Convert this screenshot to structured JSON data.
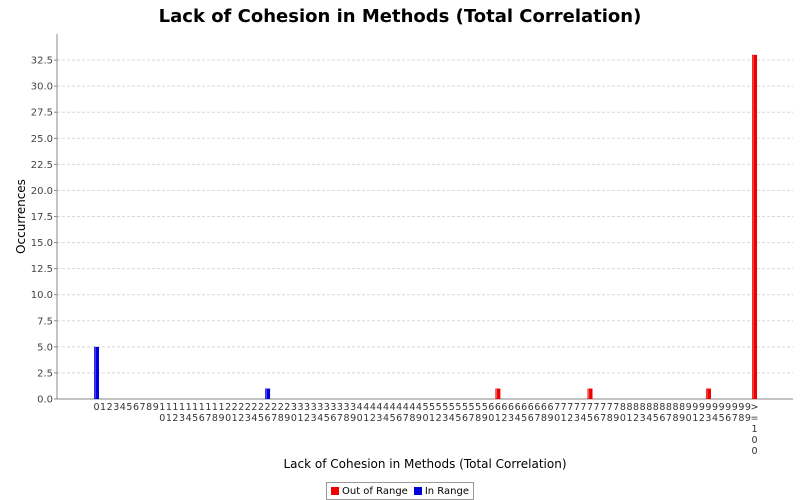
{
  "chart_data": {
    "type": "bar",
    "title": "Lack of Cohesion in Methods (Total Correlation)",
    "xlabel": "Lack of Cohesion in Methods (Total Correlation)",
    "ylabel": "Occurrences",
    "ylim": [
      0,
      35
    ],
    "yticks": [
      "0.0",
      "2.5",
      "5.0",
      "7.5",
      "10.0",
      "12.5",
      "15.0",
      "17.5",
      "20.0",
      "22.5",
      "25.0",
      "27.5",
      "30.0",
      "32.5"
    ],
    "categories": [
      "0",
      "1",
      "2",
      "3",
      "4",
      "5",
      "6",
      "7",
      "8",
      "9",
      "10",
      "11",
      "12",
      "13",
      "14",
      "15",
      "16",
      "17",
      "18",
      "19",
      "20",
      "21",
      "22",
      "23",
      "24",
      "25",
      "26",
      "27",
      "28",
      "29",
      "30",
      "31",
      "32",
      "33",
      "34",
      "35",
      "36",
      "37",
      "38",
      "39",
      "40",
      "41",
      "42",
      "43",
      "44",
      "45",
      "46",
      "47",
      "48",
      "49",
      "50",
      "51",
      "52",
      "53",
      "54",
      "55",
      "56",
      "57",
      "58",
      "59",
      "60",
      "61",
      "62",
      "63",
      "64",
      "65",
      "66",
      "67",
      "68",
      "69",
      "70",
      "71",
      "72",
      "73",
      "74",
      "75",
      "76",
      "77",
      "78",
      "79",
      "80",
      "81",
      "82",
      "83",
      "84",
      "85",
      "86",
      "87",
      "88",
      "89",
      "90",
      "91",
      "92",
      "93",
      "94",
      "95",
      "96",
      "97",
      "98",
      "99",
      ">=100"
    ],
    "series": [
      {
        "name": "Out of Range",
        "color": "#ee0000",
        "values": [
          0,
          0,
          0,
          0,
          0,
          0,
          0,
          0,
          0,
          0,
          0,
          0,
          0,
          0,
          0,
          0,
          0,
          0,
          0,
          0,
          0,
          0,
          0,
          0,
          0,
          0,
          0,
          0,
          0,
          0,
          0,
          0,
          0,
          0,
          0,
          0,
          0,
          0,
          0,
          0,
          0,
          0,
          0,
          0,
          0,
          0,
          0,
          0,
          0,
          0,
          0,
          0,
          0,
          0,
          0,
          0,
          0,
          0,
          0,
          0,
          0,
          1,
          0,
          0,
          0,
          0,
          0,
          0,
          0,
          0,
          0,
          0,
          0,
          0,
          0,
          1,
          0,
          0,
          0,
          0,
          0,
          0,
          0,
          0,
          0,
          0,
          0,
          0,
          0,
          0,
          0,
          0,
          0,
          1,
          0,
          0,
          0,
          0,
          0,
          0,
          33
        ]
      },
      {
        "name": "In Range",
        "color": "#0000dd",
        "values": [
          5,
          0,
          0,
          0,
          0,
          0,
          0,
          0,
          0,
          0,
          0,
          0,
          0,
          0,
          0,
          0,
          0,
          0,
          0,
          0,
          0,
          0,
          0,
          0,
          0,
          0,
          1,
          0,
          0,
          0,
          0,
          0,
          0,
          0,
          0,
          0,
          0,
          0,
          0,
          0,
          0,
          0,
          0,
          0,
          0,
          0,
          0,
          0,
          0,
          0,
          0,
          0,
          0,
          0,
          0,
          0,
          0,
          0,
          0,
          0,
          0,
          0,
          0,
          0,
          0,
          0,
          0,
          0,
          0,
          0,
          0,
          0,
          0,
          0,
          0,
          0,
          0,
          0,
          0,
          0,
          0,
          0,
          0,
          0,
          0,
          0,
          0,
          0,
          0,
          0,
          0,
          0,
          0,
          0,
          0,
          0,
          0,
          0,
          0,
          0,
          0
        ]
      }
    ],
    "grid": true,
    "legend_position": "bottom"
  }
}
